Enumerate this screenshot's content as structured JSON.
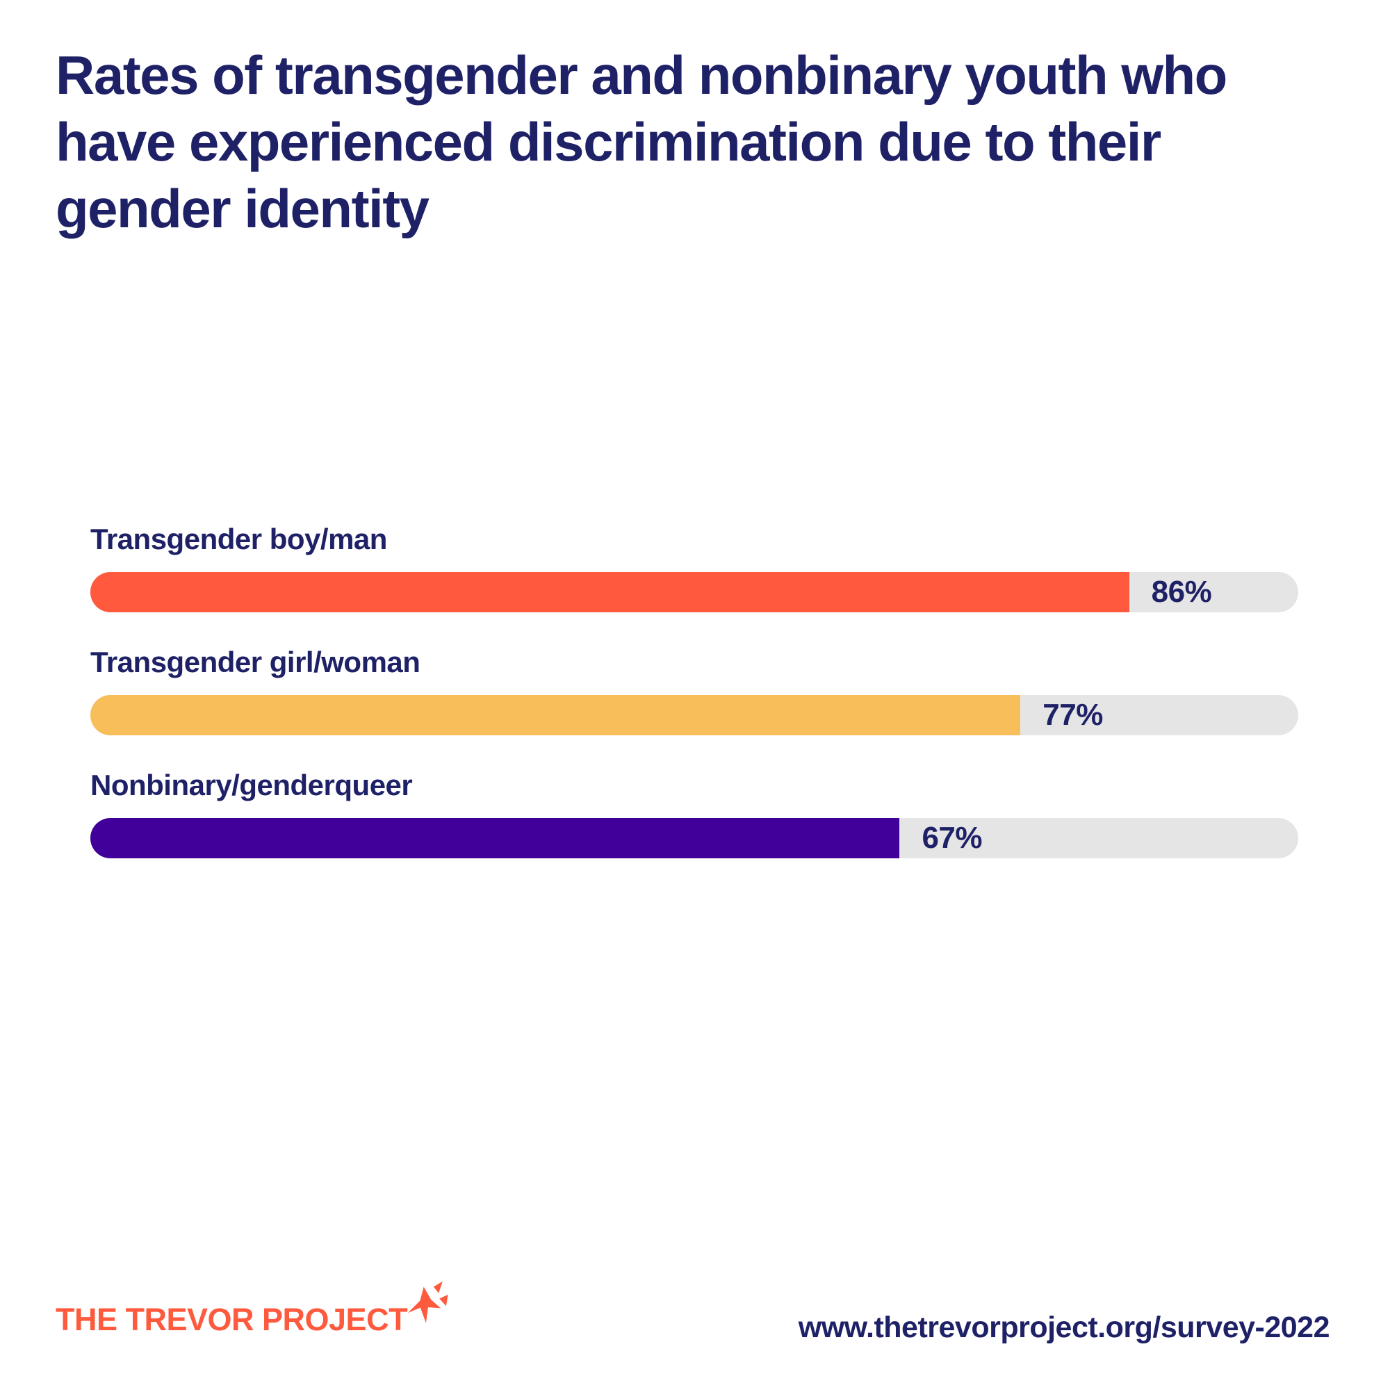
{
  "colors": {
    "navy": "#1F2167",
    "orange": "#FF5A3D",
    "yellow": "#F7BE5A",
    "purple": "#400099",
    "track_gray": "#E5E5E5",
    "background": "#FFFFFF"
  },
  "header": {
    "title": "Rates of transgender and nonbinary youth who have experienced discrimination due to their gender identity",
    "title_lines": [
      "Rates of transgender and nonbinary youth who",
      "have experienced discrimination due to their",
      "gender identity"
    ]
  },
  "chart_data": {
    "type": "bar",
    "orientation": "horizontal",
    "title": "Rates of transgender and nonbinary youth who have experienced discrimination due to their gender identity",
    "categories": [
      "Transgender boy/man",
      "Transgender girl/woman",
      "Nonbinary/genderqueer"
    ],
    "values": [
      86,
      77,
      67
    ],
    "value_labels": [
      "86%",
      "77%",
      "67%"
    ],
    "xlim": [
      0,
      100
    ],
    "grid": false,
    "legend": false,
    "bar_colors": [
      "#FF5A3D",
      "#F7BE5A",
      "#400099"
    ],
    "track_color": "#E5E5E5",
    "value_label_position": "inside-track-after-fill"
  },
  "footer": {
    "logo_text": "THE TREVOR PROJECT",
    "logo_icon": "sparkle-star-icon",
    "logo_color": "#FF5A3D",
    "url": "www.thetrevorproject.org/survey-2022"
  }
}
